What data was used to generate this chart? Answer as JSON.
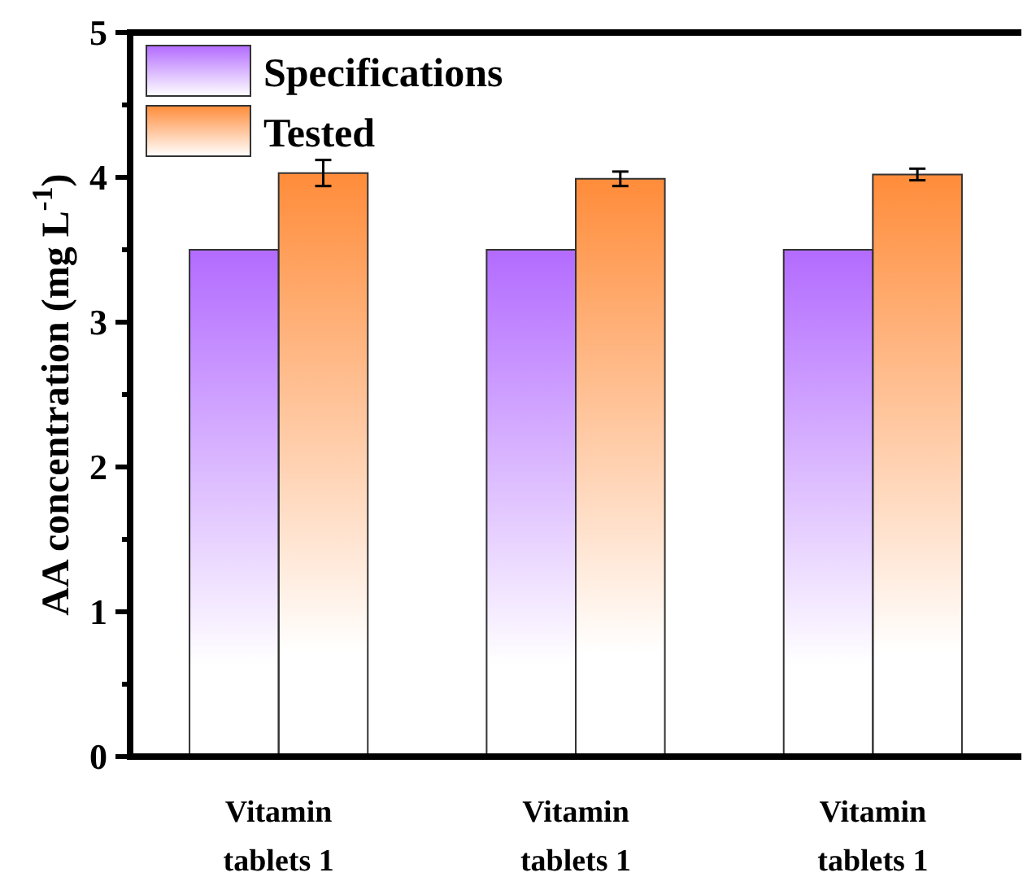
{
  "chart_data": {
    "type": "bar",
    "ylabel": "AA concentration (mg L$^{-1}$)",
    "categories": [
      "Vitamin\ntablets 1",
      "Vitamin\ntablets 1",
      "Vitamin\ntablets 1"
    ],
    "series": [
      {
        "name": "Specifications",
        "color": "#b36bff",
        "values": [
          3.5,
          3.5,
          3.5
        ]
      },
      {
        "name": "Tested",
        "color": "#ff8c3a",
        "values": [
          4.03,
          3.99,
          4.02
        ],
        "errors": [
          0.09,
          0.05,
          0.04
        ]
      }
    ],
    "ylim": [
      0,
      5
    ],
    "yticks": [
      0,
      {
        "value": 0.5,
        "label": null
      },
      1,
      {
        "value": 1.5,
        "label": null
      },
      2,
      {
        "value": 2.5,
        "label": null
      },
      3,
      {
        "value": 3.5,
        "label": null
      },
      4,
      {
        "value": 4.5,
        "label": null
      },
      5
    ],
    "legend": "top left",
    "grid": false
  }
}
